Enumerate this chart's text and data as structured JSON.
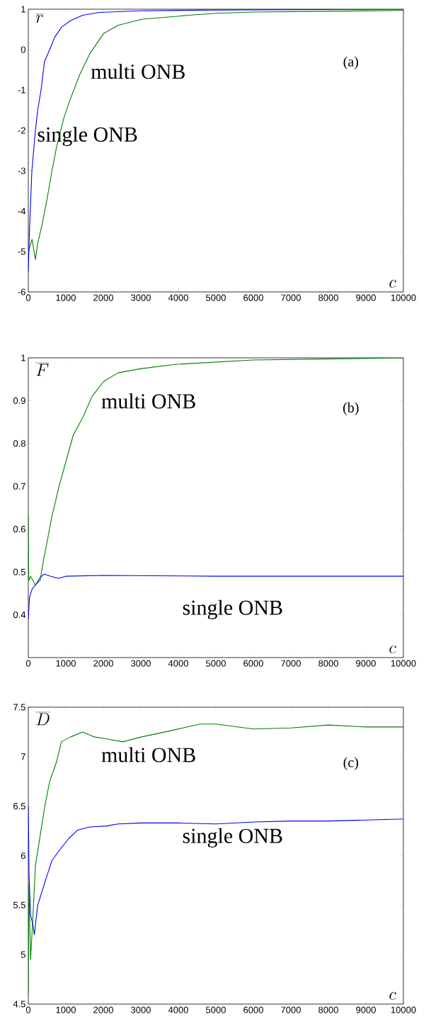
{
  "chart_data": [
    {
      "type": "line",
      "ylabel": "\\overline{r}",
      "xlabel": "c",
      "annotations": [
        "(a)"
      ],
      "xlim": [
        0,
        10000
      ],
      "ylim": [
        -6,
        1
      ],
      "xticks": [
        0,
        1000,
        2000,
        3000,
        4000,
        5000,
        6000,
        7000,
        8000,
        9000,
        10000
      ],
      "yticks": [
        -6,
        -5,
        -4,
        -3,
        -2,
        -1,
        0,
        1
      ],
      "grid": false,
      "legend": false,
      "series": [
        {
          "name": "multi ONB",
          "color": "#008000",
          "x": [
            0,
            100,
            190,
            250,
            375,
            500,
            630,
            755,
            945,
            1130,
            1380,
            1640,
            2010,
            2390,
            3020,
            4280,
            5000,
            6000,
            8000,
            10000
          ],
          "values": [
            -5.0,
            -4.7,
            -5.2,
            -4.8,
            -4.3,
            -3.7,
            -3.0,
            -2.4,
            -1.7,
            -1.2,
            -0.6,
            -0.1,
            0.4,
            0.6,
            0.75,
            0.85,
            0.9,
            0.93,
            0.95,
            0.97
          ]
        },
        {
          "name": "single ONB",
          "color": "#0000ff",
          "x": [
            0,
            30,
            95,
            190,
            250,
            340,
            430,
            570,
            700,
            880,
            1130,
            1450,
            1890,
            3000,
            5000,
            10000
          ],
          "values": [
            -5.5,
            -4.5,
            -3.0,
            -2.0,
            -1.5,
            -1.0,
            -0.3,
            0.0,
            0.3,
            0.55,
            0.72,
            0.85,
            0.92,
            0.96,
            0.98,
            1.0
          ]
        }
      ]
    },
    {
      "type": "line",
      "ylabel": "\\overline{F}",
      "xlabel": "c",
      "annotations": [
        "(b)"
      ],
      "xlim": [
        0,
        10000
      ],
      "ylim": [
        0.3,
        1
      ],
      "xticks": [
        0,
        1000,
        2000,
        3000,
        4000,
        5000,
        6000,
        7000,
        8000,
        9000,
        10000
      ],
      "yticks": [
        0.4,
        0.5,
        0.6,
        0.7,
        0.8,
        0.9,
        1
      ],
      "grid": false,
      "legend": false,
      "series": [
        {
          "name": "multi ONB",
          "color": "#008000",
          "x": [
            0,
            10,
            60,
            190,
            315,
            410,
            500,
            630,
            820,
            1010,
            1200,
            1450,
            1700,
            2010,
            2390,
            3020,
            3960,
            6000,
            10000
          ],
          "values": [
            0.63,
            0.48,
            0.49,
            0.47,
            0.48,
            0.53,
            0.57,
            0.63,
            0.7,
            0.76,
            0.82,
            0.86,
            0.91,
            0.945,
            0.965,
            0.975,
            0.985,
            0.995,
            1.0
          ]
        },
        {
          "name": "single ONB",
          "color": "#0000ff",
          "x": [
            0,
            30,
            100,
            200,
            300,
            420,
            600,
            800,
            1000,
            2000,
            5000,
            10000
          ],
          "values": [
            0.39,
            0.44,
            0.46,
            0.47,
            0.485,
            0.495,
            0.49,
            0.485,
            0.49,
            0.492,
            0.49,
            0.49
          ]
        }
      ]
    },
    {
      "type": "line",
      "ylabel": "\\overline{D}",
      "xlabel": "c",
      "annotations": [
        "(c)"
      ],
      "xlim": [
        0,
        10000
      ],
      "ylim": [
        4.5,
        7.5
      ],
      "xticks": [
        0,
        1000,
        2000,
        3000,
        4000,
        5000,
        6000,
        7000,
        8000,
        9000,
        10000
      ],
      "yticks": [
        4.5,
        5,
        5.5,
        6,
        6.5,
        7,
        7.5
      ],
      "grid": false,
      "legend": false,
      "series": [
        {
          "name": "multi ONB",
          "color": "#008000",
          "x": [
            0,
            15,
            60,
            125,
            190,
            315,
            440,
            570,
            755,
            880,
            1130,
            1450,
            1760,
            2080,
            2520,
            3020,
            3650,
            4590,
            5000,
            6000,
            7000,
            8000,
            9000,
            10000
          ],
          "values": [
            4.6,
            5.7,
            4.95,
            5.4,
            5.9,
            6.2,
            6.5,
            6.75,
            6.95,
            7.15,
            7.2,
            7.25,
            7.2,
            7.18,
            7.15,
            7.2,
            7.25,
            7.33,
            7.33,
            7.28,
            7.29,
            7.32,
            7.3,
            7.3
          ]
        },
        {
          "name": "single ONB",
          "color": "#0000ff",
          "x": [
            0,
            20,
            60,
            125,
            160,
            250,
            375,
            500,
            630,
            820,
            1070,
            1320,
            1640,
            2080,
            2390,
            3000,
            4000,
            5000,
            6000,
            7000,
            8000,
            9000,
            10000
          ],
          "values": [
            6.5,
            5.8,
            5.4,
            5.3,
            5.2,
            5.5,
            5.65,
            5.8,
            5.95,
            6.05,
            6.17,
            6.26,
            6.29,
            6.3,
            6.32,
            6.33,
            6.33,
            6.32,
            6.34,
            6.35,
            6.35,
            6.36,
            6.37
          ]
        }
      ]
    }
  ]
}
